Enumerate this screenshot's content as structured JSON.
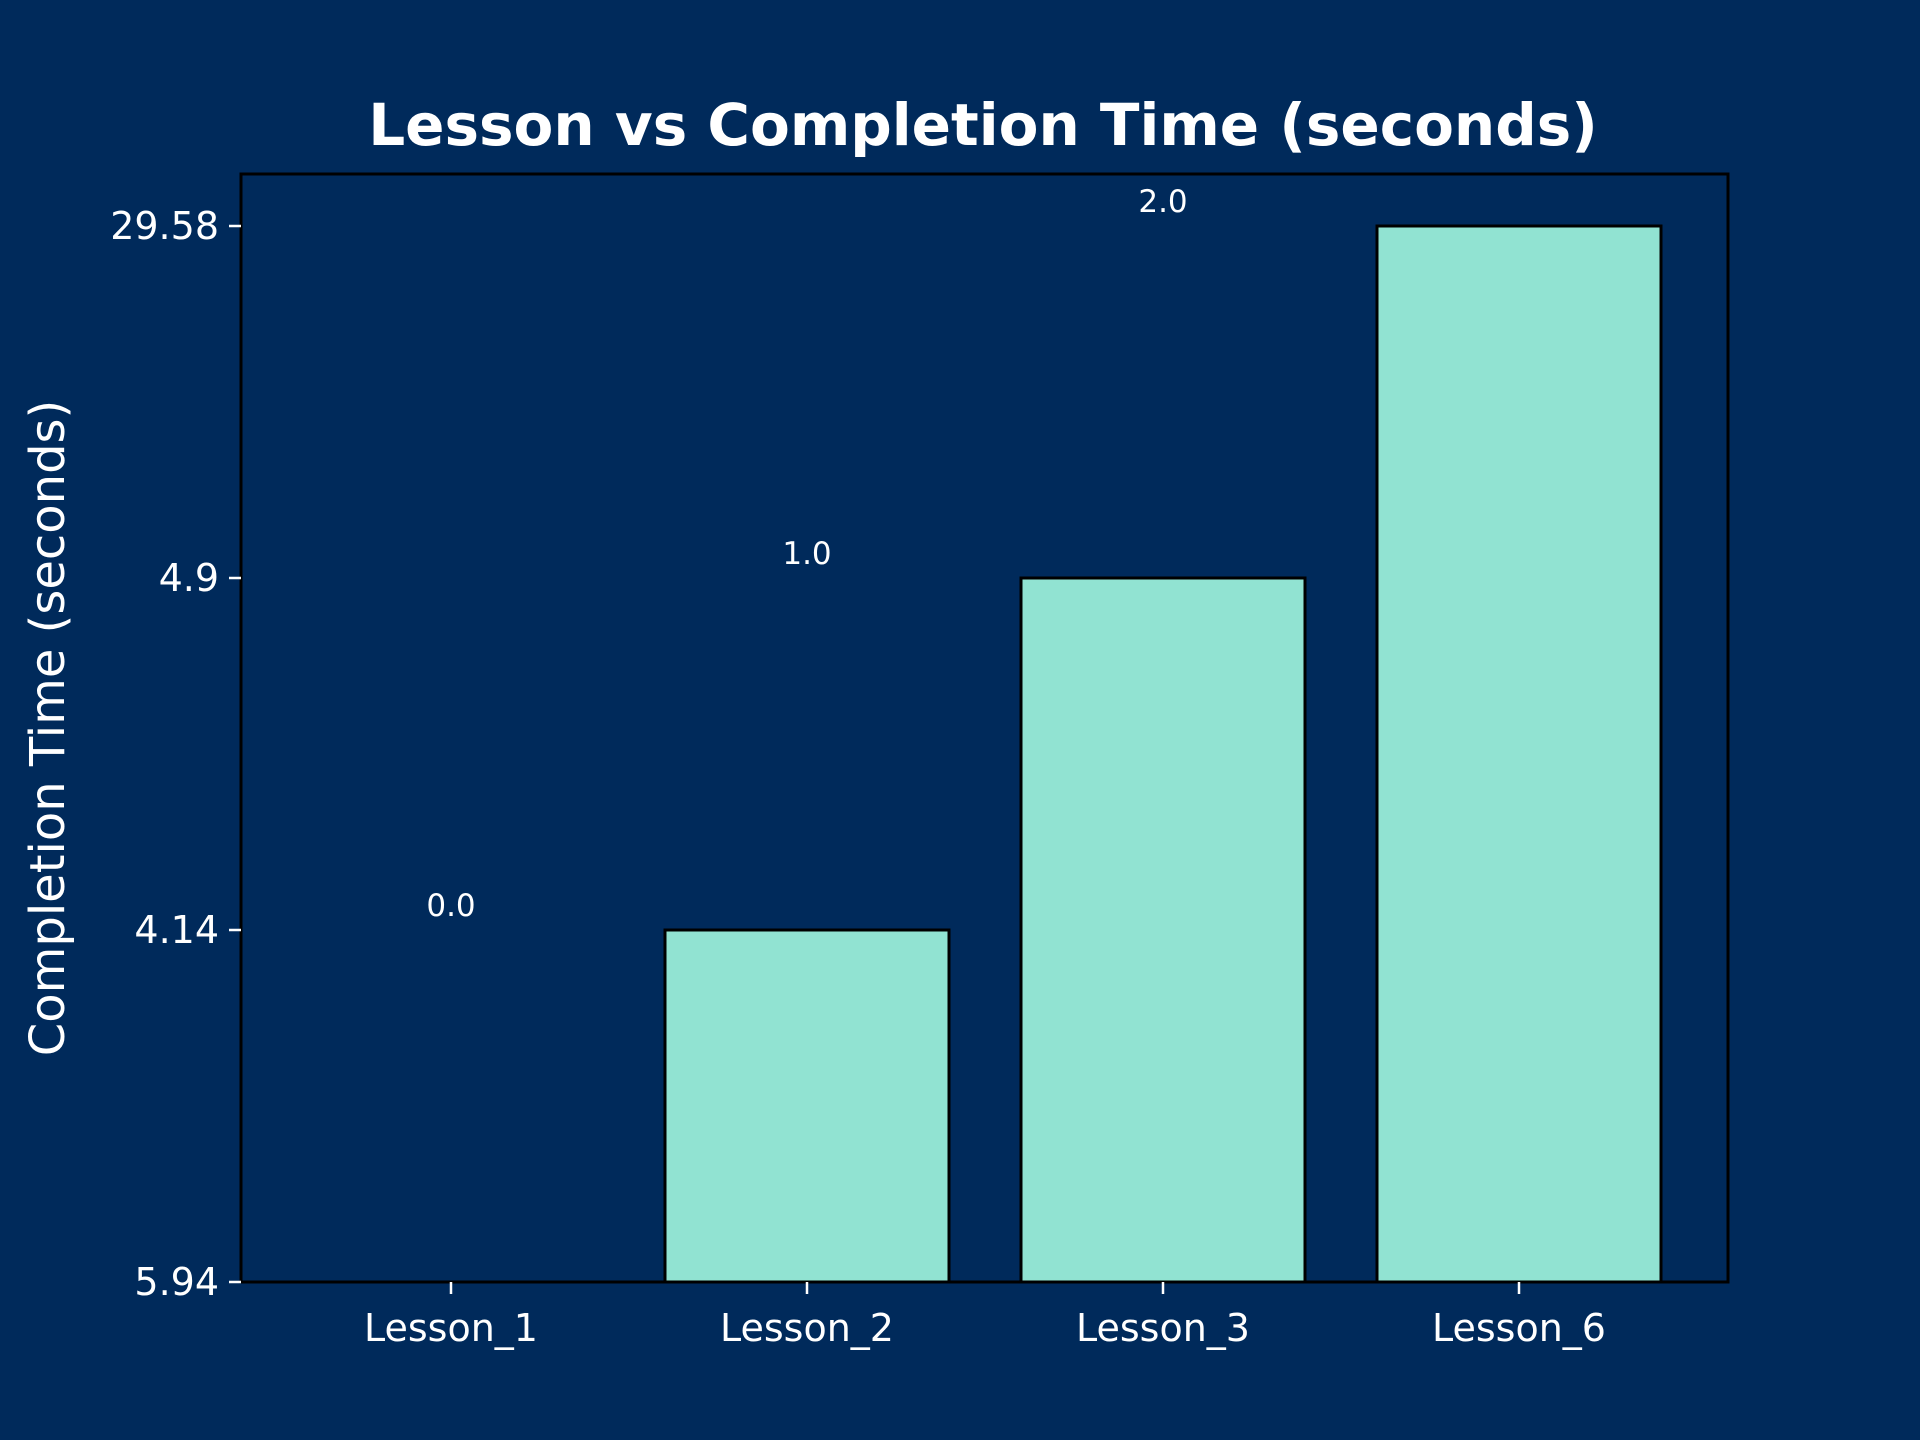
{
  "colors": {
    "background": "#002a5b",
    "bar_fill": "#91e3d2",
    "bar_edge": "#000000",
    "text": "#ffffff",
    "axis": "#000000",
    "tick": "#ffffff"
  },
  "chart_data": {
    "type": "bar",
    "title": "Lesson vs Completion Time (seconds)",
    "xlabel": "",
    "ylabel": "Completion Time (seconds)",
    "categories": [
      "Lesson_1",
      "Lesson_2",
      "Lesson_3",
      "Lesson_6"
    ],
    "values": [
      0,
      1,
      2,
      3
    ],
    "data_labels": [
      "0.0",
      "1.0",
      "2.0",
      ""
    ],
    "ylim": [
      0,
      3
    ],
    "yticks": [
      {
        "value": 0,
        "label": "5.94"
      },
      {
        "value": 1,
        "label": "4.14"
      },
      {
        "value": 2,
        "label": "4.9"
      },
      {
        "value": 3,
        "label": "29.58"
      }
    ],
    "grid": false,
    "legend": "none"
  }
}
